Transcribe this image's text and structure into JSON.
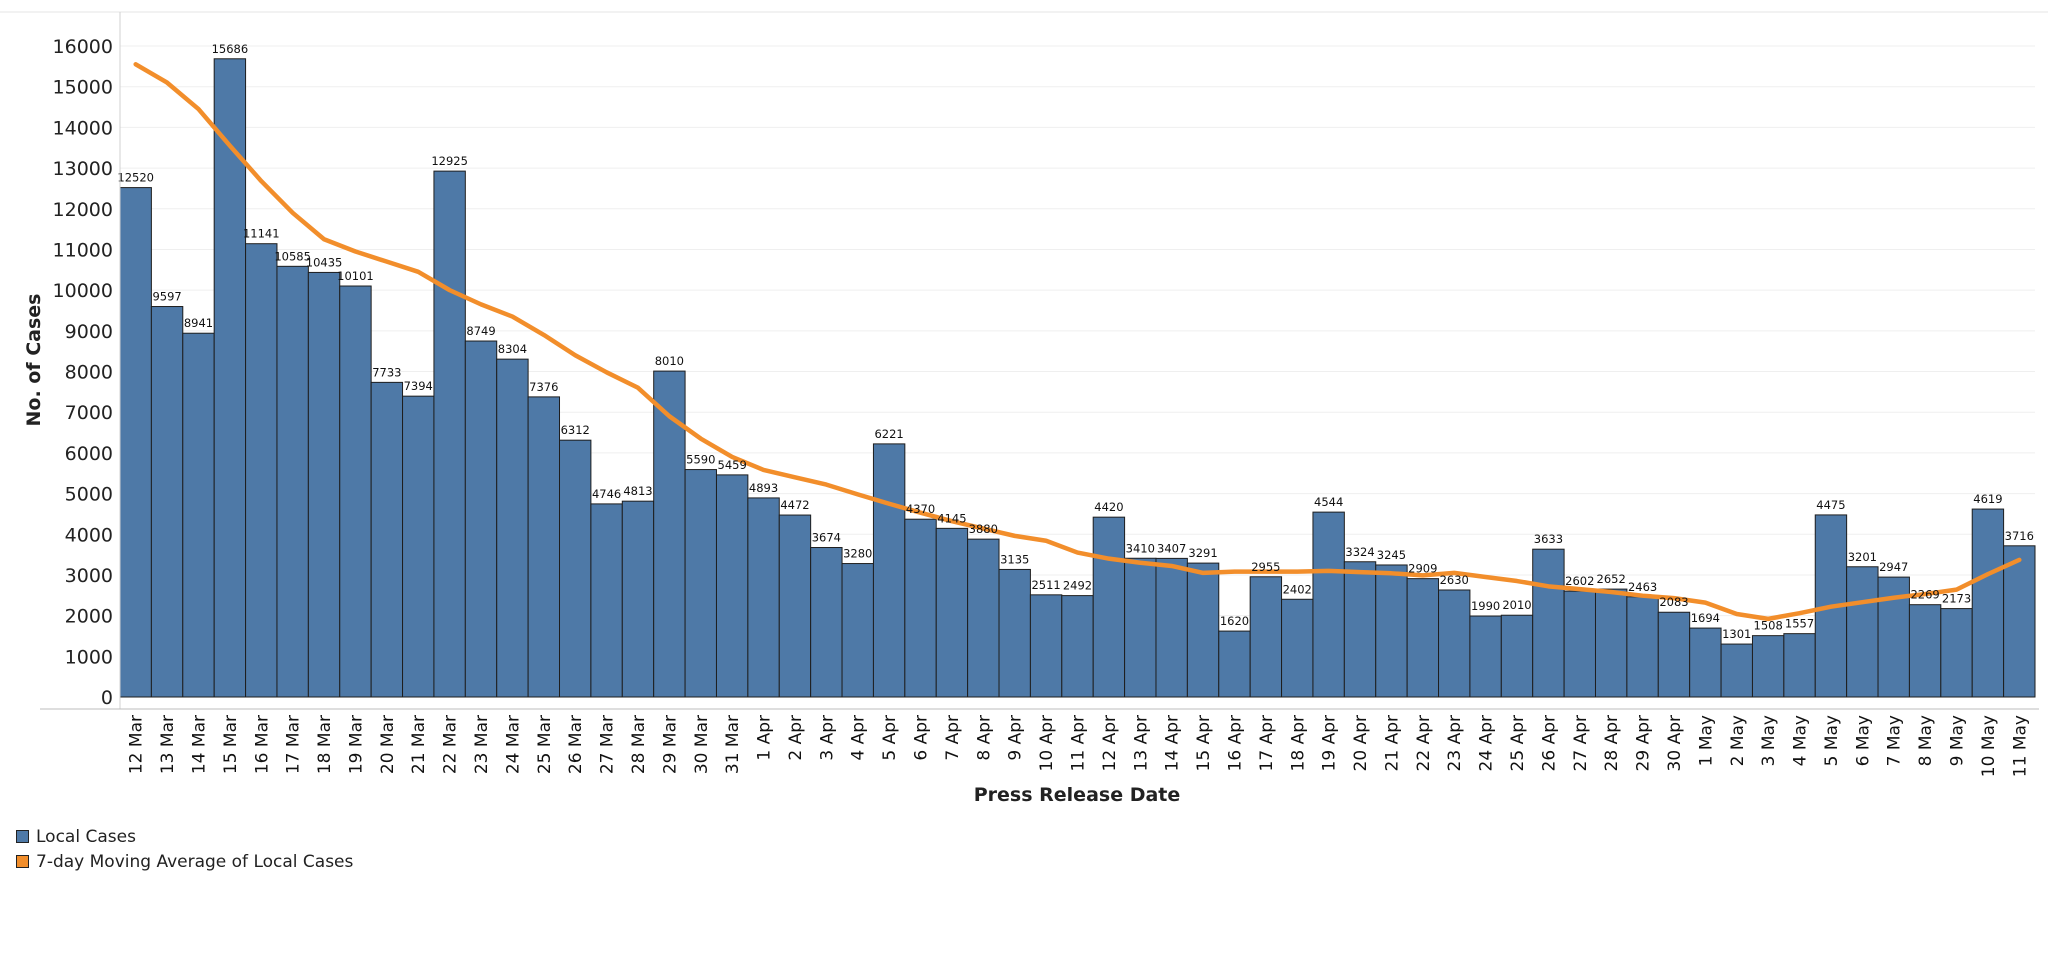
{
  "chart_data": {
    "type": "bar",
    "title": "",
    "xlabel": "Press Release Date",
    "ylabel": "No. of Cases",
    "ylim": [
      0,
      16000
    ],
    "yticks": [
      0,
      1000,
      2000,
      3000,
      4000,
      5000,
      6000,
      7000,
      8000,
      9000,
      10000,
      11000,
      12000,
      13000,
      14000,
      15000,
      16000
    ],
    "grid": true,
    "legend_position": "bottom-left",
    "categories": [
      "12 Mar",
      "13 Mar",
      "14 Mar",
      "15 Mar",
      "16 Mar",
      "17 Mar",
      "18 Mar",
      "19 Mar",
      "20 Mar",
      "21 Mar",
      "22 Mar",
      "23 Mar",
      "24 Mar",
      "25 Mar",
      "26 Mar",
      "27 Mar",
      "28 Mar",
      "29 Mar",
      "30 Mar",
      "31 Mar",
      "1 Apr",
      "2 Apr",
      "3 Apr",
      "4 Apr",
      "5 Apr",
      "6 Apr",
      "7 Apr",
      "8 Apr",
      "9 Apr",
      "10 Apr",
      "11 Apr",
      "12 Apr",
      "13 Apr",
      "14 Apr",
      "15 Apr",
      "16 Apr",
      "17 Apr",
      "18 Apr",
      "19 Apr",
      "20 Apr",
      "21 Apr",
      "22 Apr",
      "23 Apr",
      "24 Apr",
      "25 Apr",
      "26 Apr",
      "27 Apr",
      "28 Apr",
      "29 Apr",
      "30 Apr",
      "1 May",
      "2 May",
      "3 May",
      "4 May",
      "5 May",
      "6 May",
      "7 May",
      "8 May",
      "9 May",
      "10 May",
      "11 May"
    ],
    "series": [
      {
        "name": "Local Cases",
        "type": "bar",
        "color": "#4e79a7",
        "values": [
          12520,
          9597,
          8941,
          15686,
          11141,
          10585,
          10435,
          10101,
          7733,
          7394,
          12925,
          8749,
          8304,
          7376,
          6312,
          4746,
          4813,
          8010,
          5590,
          5459,
          4893,
          4472,
          3674,
          3280,
          6221,
          4370,
          4145,
          3880,
          3135,
          2511,
          2492,
          4420,
          3410,
          3407,
          3291,
          1620,
          2955,
          2402,
          4544,
          3324,
          3245,
          2909,
          2630,
          1990,
          2010,
          3633,
          2602,
          2652,
          2463,
          2083,
          1694,
          1301,
          1508,
          1557,
          4475,
          3201,
          2947,
          2269,
          2173,
          4619,
          3716
        ]
      },
      {
        "name": "7-day Moving Average of Local Cases",
        "type": "line",
        "color": "#f28e2b",
        "values": [
          15550,
          15100,
          14450,
          13550,
          12680,
          11900,
          11250,
          10950,
          10700,
          10450,
          10000,
          9650,
          9350,
          8900,
          8400,
          7980,
          7600,
          6900,
          6350,
          5900,
          5580,
          5400,
          5220,
          4980,
          4750,
          4530,
          4320,
          4140,
          3960,
          3840,
          3550,
          3400,
          3300,
          3220,
          3050,
          3080,
          3080,
          3080,
          3100,
          3070,
          3040,
          2990,
          3050,
          2950,
          2850,
          2720,
          2650,
          2580,
          2490,
          2430,
          2320,
          2040,
          1920,
          2060,
          2220,
          2330,
          2440,
          2530,
          2640,
          3020,
          3370
        ]
      }
    ],
    "data_labels_shown": true
  }
}
